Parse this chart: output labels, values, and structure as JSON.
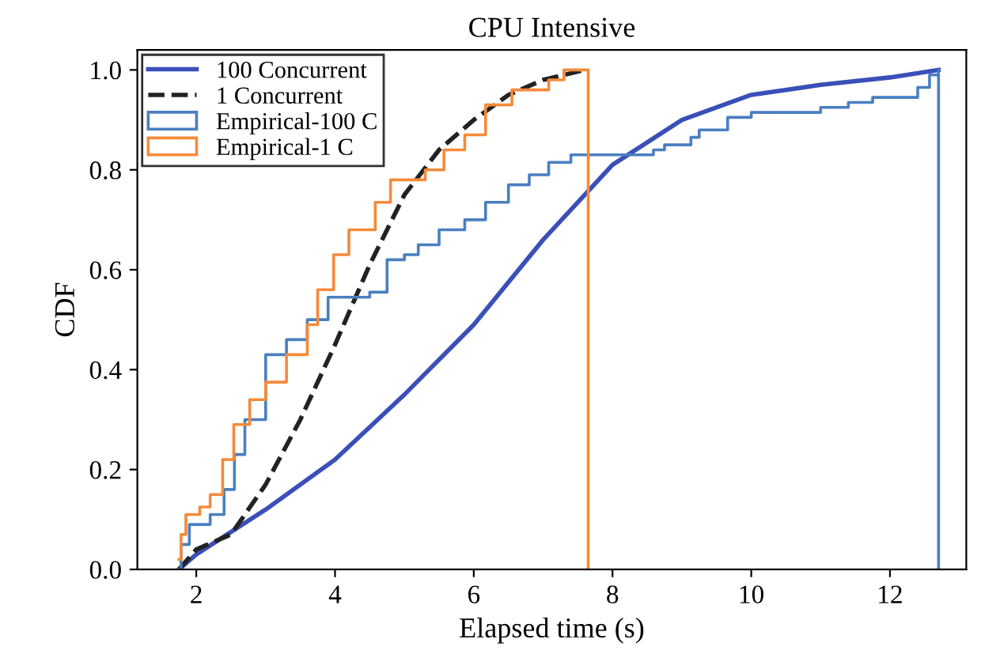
{
  "chart_data": {
    "type": "line",
    "title": "CPU Intensive",
    "xlabel": "Elapsed time (s)",
    "ylabel": "CDF",
    "xlim": [
      1.15,
      13.1
    ],
    "ylim": [
      0,
      1.04
    ],
    "xticks": [
      2,
      4,
      6,
      8,
      10,
      12
    ],
    "yticks": [
      {
        "value": 0,
        "label": "0.0"
      },
      {
        "value": 0.2,
        "label": "0.2"
      },
      {
        "value": 0.4,
        "label": "0.4"
      },
      {
        "value": 0.6,
        "label": "0.6"
      },
      {
        "value": 0.8,
        "label": "0.8"
      },
      {
        "value": 1,
        "label": "1.0"
      }
    ],
    "legend": "top left",
    "grid": false,
    "series": [
      {
        "name": "100 Concurrent",
        "color": "#3a4fb8",
        "line_style": "solid",
        "x": [
          1.75,
          2,
          3,
          4,
          5,
          6,
          7,
          8,
          9,
          10,
          11,
          12,
          12.7
        ],
        "values": [
          0.0,
          0.03,
          0.12,
          0.22,
          0.35,
          0.49,
          0.66,
          0.81,
          0.9,
          0.95,
          0.97,
          0.985,
          1.0
        ]
      },
      {
        "name": "1 Concurrent",
        "color": "#222222",
        "line_style": "dashed",
        "x": [
          1.75,
          2,
          2.5,
          3,
          3.5,
          4,
          4.5,
          5,
          5.5,
          6,
          6.5,
          7,
          7.6
        ],
        "values": [
          0.0,
          0.04,
          0.07,
          0.17,
          0.3,
          0.45,
          0.61,
          0.75,
          0.84,
          0.9,
          0.95,
          0.98,
          1.0
        ]
      },
      {
        "name": "Empirical-100 C",
        "type": "step",
        "color": "#4a7fc1",
        "line_style": "solid",
        "x": [
          1.75,
          1.78,
          1.9,
          2.2,
          2.4,
          2.55,
          2.7,
          3.0,
          3.3,
          3.6,
          3.9,
          4.5,
          4.75,
          5.0,
          5.2,
          5.5,
          5.87,
          6.17,
          6.5,
          6.8,
          7.08,
          7.4,
          8.59,
          8.75,
          9.13,
          9.25,
          9.66,
          10.0,
          11.0,
          11.4,
          11.75,
          12.4,
          12.57,
          12.7,
          12.7
        ],
        "values": [
          0.0,
          0.05,
          0.09,
          0.11,
          0.16,
          0.23,
          0.3,
          0.43,
          0.46,
          0.5,
          0.545,
          0.555,
          0.62,
          0.63,
          0.65,
          0.68,
          0.7,
          0.735,
          0.77,
          0.79,
          0.815,
          0.83,
          0.84,
          0.85,
          0.865,
          0.88,
          0.905,
          0.915,
          0.925,
          0.935,
          0.945,
          0.965,
          0.99,
          1.0,
          0.0
        ]
      },
      {
        "name": "Empirical-1 C",
        "type": "step",
        "color": "#f58a3a",
        "line_style": "solid",
        "x": [
          1.75,
          1.78,
          1.85,
          2.05,
          2.2,
          2.38,
          2.54,
          2.77,
          3.0,
          3.3,
          3.6,
          3.75,
          3.98,
          4.2,
          4.58,
          4.8,
          5.3,
          5.57,
          5.87,
          6.17,
          6.55,
          7.08,
          7.3,
          7.65,
          7.65
        ],
        "values": [
          0.02,
          0.07,
          0.11,
          0.125,
          0.15,
          0.22,
          0.29,
          0.34,
          0.375,
          0.43,
          0.49,
          0.56,
          0.63,
          0.68,
          0.735,
          0.78,
          0.8,
          0.84,
          0.87,
          0.93,
          0.96,
          0.98,
          1.0,
          1.0,
          0.0
        ]
      }
    ]
  }
}
